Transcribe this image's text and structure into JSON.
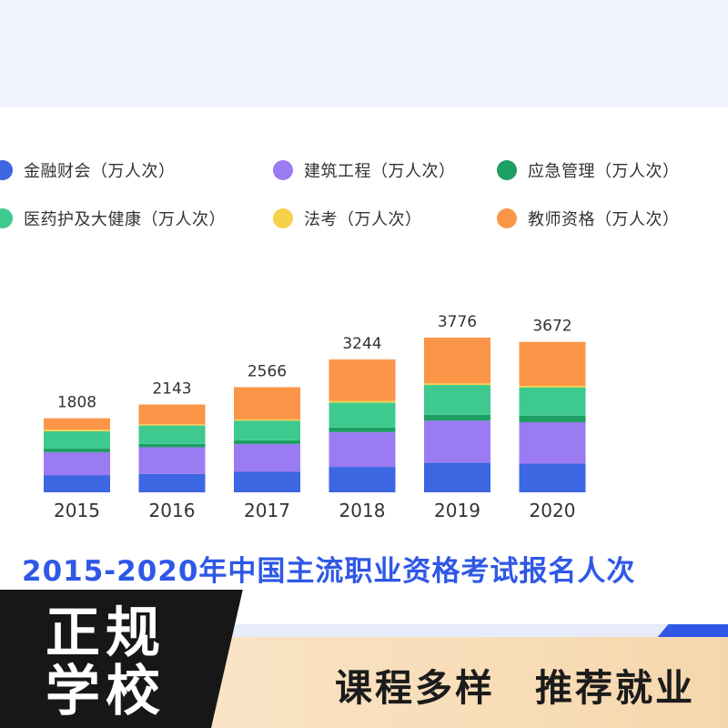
{
  "legend": [
    {
      "label": "金融财会（万人次）",
      "color": "#3d66e3"
    },
    {
      "label": "建筑工程（万人次）",
      "color": "#9b7bf2"
    },
    {
      "label": "应急管理（万人次）",
      "color": "#1d9e63"
    },
    {
      "label": "医药护及大健康（万人次）",
      "color": "#3ec98f"
    },
    {
      "label": "法考（万人次）",
      "color": "#f7d14a"
    },
    {
      "label": "教师资格（万人次）",
      "color": "#fb9648"
    }
  ],
  "chart_data": {
    "type": "bar",
    "stacked": true,
    "title": "2015-2020年中国主流职业资格考试报名人次",
    "categories": [
      "2015",
      "2016",
      "2017",
      "2018",
      "2019",
      "2020"
    ],
    "totals": [
      1808,
      2143,
      2566,
      3244,
      3776,
      3672
    ],
    "series": [
      {
        "name": "金融财会（万人次）",
        "color": "#3d66e3",
        "values": [
          420,
          450,
          500,
          620,
          720,
          700
        ]
      },
      {
        "name": "建筑工程（万人次）",
        "color": "#9b7bf2",
        "values": [
          560,
          650,
          680,
          850,
          1030,
          1010
        ]
      },
      {
        "name": "应急管理（万人次）",
        "color": "#1d9e63",
        "values": [
          90,
          80,
          90,
          110,
          140,
          160
        ]
      },
      {
        "name": "医药护及大健康（万人次）",
        "color": "#3ec98f",
        "values": [
          420,
          450,
          480,
          610,
          730,
          690
        ]
      },
      {
        "name": "法考（万人次）",
        "color": "#f7d14a",
        "values": [
          40,
          30,
          30,
          40,
          40,
          40
        ]
      },
      {
        "name": "教师资格（万人次）",
        "color": "#fb9648",
        "values": [
          278,
          483,
          786,
          1014,
          1116,
          1072
        ]
      }
    ],
    "ylim": [
      0,
      3776
    ],
    "grid": false,
    "legend_position": "top"
  },
  "footer": {
    "badge_line1": "正规",
    "badge_line2": "学校",
    "slogan": "课程多样　推荐就业"
  }
}
